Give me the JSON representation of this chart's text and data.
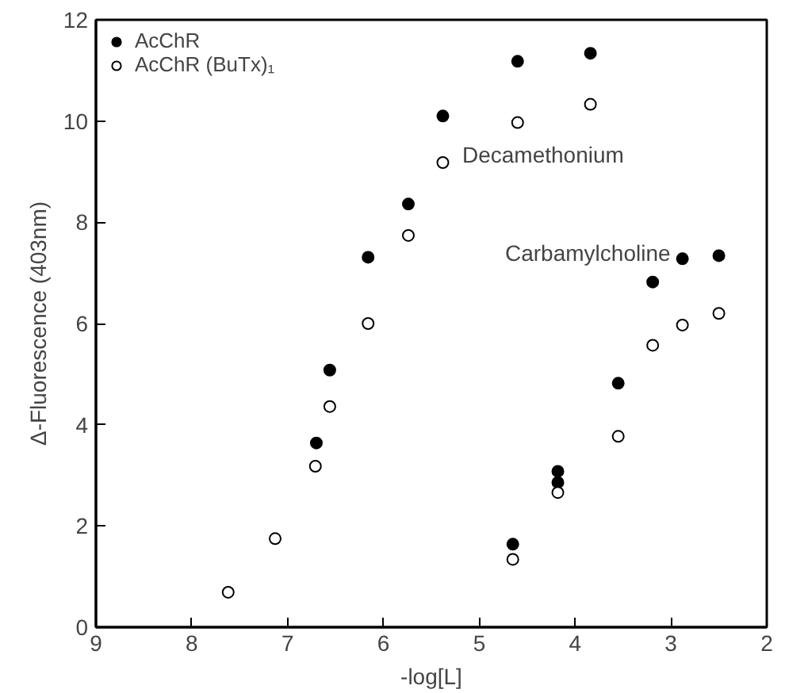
{
  "chart_data": {
    "type": "scatter",
    "xlabel": "-log[L]",
    "ylabel": "Δ-Fluorescence (403nm)",
    "xlim": [
      9,
      2
    ],
    "ylim": [
      0,
      12
    ],
    "xticks": [
      9,
      8,
      7,
      6,
      5,
      4,
      3,
      2
    ],
    "yticks": [
      0,
      2,
      4,
      6,
      8,
      10,
      12
    ],
    "grid": false,
    "legend": "top left",
    "marker": "circle",
    "series": [
      {
        "name": "AcChR",
        "color": "#000000",
        "x": [
          6.7,
          6.56,
          6.16,
          5.74,
          5.38,
          4.6,
          3.84,
          4.65,
          4.18,
          4.18,
          3.55,
          3.19,
          2.88,
          2.5
        ],
        "values": [
          3.64,
          5.08,
          7.31,
          8.36,
          10.1,
          11.18,
          11.34,
          1.64,
          3.08,
          2.86,
          4.82,
          6.82,
          7.28,
          7.34
        ]
      },
      {
        "name": "AcChR (BuTx)₁",
        "color": "#ffffff",
        "x": [
          7.62,
          7.13,
          6.71,
          6.56,
          6.16,
          5.74,
          5.38,
          4.6,
          3.84,
          4.65,
          4.18,
          3.55,
          3.19,
          2.88,
          2.5
        ],
        "values": [
          0.69,
          1.75,
          3.18,
          4.36,
          6.0,
          7.74,
          9.18,
          9.97,
          10.33,
          1.34,
          2.66,
          3.77,
          5.57,
          5.97,
          6.2
        ]
      }
    ],
    "annotations": [
      "Decamethonium",
      "Carbamylcholine"
    ]
  }
}
